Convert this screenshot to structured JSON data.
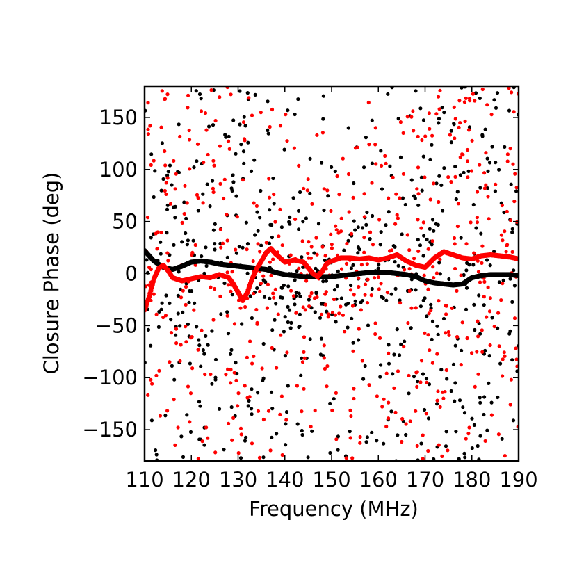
{
  "chart_data": {
    "type": "scatter",
    "title": "",
    "xlabel": "Frequency (MHz)",
    "ylabel": "Closure Phase (deg)",
    "xlim": [
      110,
      190
    ],
    "ylim": [
      -180,
      180
    ],
    "xticks": [
      110,
      120,
      130,
      140,
      150,
      160,
      170,
      180,
      190
    ],
    "yticks": [
      -150,
      -100,
      -50,
      0,
      50,
      100,
      150
    ],
    "ytick_labels": [
      "−150",
      "−100",
      "−50",
      "0",
      "50",
      "100",
      "150"
    ],
    "grid": false,
    "legend": "none",
    "series": [
      {
        "color": "#000000",
        "style": "dense-curve",
        "x": [
          110,
          112,
          114,
          116,
          118,
          120,
          122,
          124,
          126,
          128,
          130,
          132,
          134,
          136,
          138,
          140,
          142,
          144,
          146,
          148,
          150,
          152,
          154,
          156,
          158,
          160,
          162,
          164,
          166,
          168,
          170,
          172,
          174,
          176,
          178,
          180,
          182,
          184,
          186,
          188,
          190
        ],
        "y": [
          22,
          12,
          6,
          4,
          7,
          11,
          12,
          11,
          9,
          8,
          7,
          6,
          5,
          4,
          1,
          -1,
          -2,
          -3,
          -3,
          -3,
          -3,
          -2,
          -1,
          0,
          1,
          1,
          1,
          0,
          -1,
          -3,
          -7,
          -9,
          -10,
          -11,
          -10,
          -4,
          -2,
          -1,
          -1,
          -1,
          -2
        ]
      },
      {
        "color": "#ff0000",
        "style": "dense-curve",
        "x": [
          110,
          111,
          112,
          113,
          114,
          115,
          116,
          118,
          120,
          122,
          124,
          126,
          128,
          129,
          130,
          131,
          132,
          133,
          134,
          135,
          136,
          137,
          138,
          139,
          140,
          142,
          144,
          146,
          147,
          148,
          149,
          150,
          152,
          154,
          156,
          158,
          160,
          162,
          164,
          166,
          168,
          170,
          172,
          174,
          176,
          178,
          180,
          182,
          184,
          186,
          188,
          190
        ],
        "y": [
          -35,
          -22,
          -5,
          5,
          8,
          3,
          -4,
          -7,
          -5,
          -3,
          -4,
          -1,
          -4,
          -10,
          -18,
          -26,
          -18,
          -5,
          5,
          12,
          20,
          24,
          19,
          15,
          11,
          13,
          11,
          0,
          -3,
          2,
          10,
          12,
          15,
          15,
          14,
          15,
          13,
          15,
          18,
          12,
          8,
          6,
          15,
          21,
          18,
          15,
          14,
          17,
          18,
          17,
          16,
          14
        ]
      },
      {
        "color": "#000000",
        "style": "scatter",
        "count": 620,
        "distribution": "uniform noise over full phase range, denser within ±50 deg near 135–160 MHz"
      },
      {
        "color": "#ff0000",
        "style": "scatter",
        "count": 620,
        "distribution": "uniform noise over full phase range, denser within ±50 deg near 135–160 MHz"
      }
    ]
  }
}
